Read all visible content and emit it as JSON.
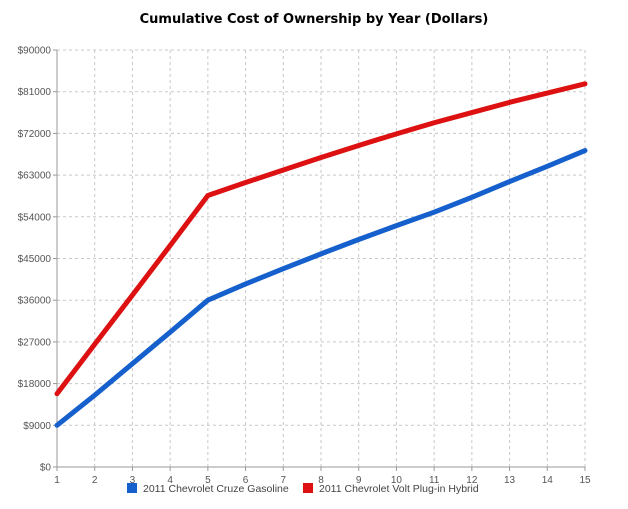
{
  "chart_data": {
    "type": "line",
    "title": "Cumulative Cost of Ownership by Year (Dollars)",
    "xlabel": "",
    "ylabel": "",
    "x": [
      1,
      2,
      3,
      4,
      5,
      6,
      7,
      8,
      9,
      10,
      11,
      12,
      13,
      14,
      15
    ],
    "xlim": [
      1,
      15
    ],
    "ylim": [
      0,
      90000
    ],
    "x_ticks": [
      "1",
      "2",
      "3",
      "4",
      "5",
      "6",
      "7",
      "8",
      "9",
      "10",
      "11",
      "12",
      "13",
      "14",
      "15"
    ],
    "y_ticks": [
      0,
      9000,
      18000,
      27000,
      36000,
      45000,
      54000,
      63000,
      72000,
      81000,
      90000
    ],
    "y_tick_labels": [
      "$0",
      "$9000",
      "$18000",
      "$27000",
      "$36000",
      "$45000",
      "$54000",
      "$63000",
      "$72000",
      "$81000",
      "$90000"
    ],
    "grid": true,
    "legend_position": "bottom",
    "series": [
      {
        "name": "2011 Chevrolet Cruze Gasoline",
        "color": "#1560cc",
        "values": [
          9000,
          15500,
          22300,
          29100,
          36000,
          39500,
          42800,
          46000,
          49100,
          52100,
          55000,
          58200,
          61600,
          64900,
          68300
        ]
      },
      {
        "name": "2011 Chevrolet Volt Plug-in Hybrid",
        "color": "#dd1111",
        "values": [
          15800,
          26500,
          37100,
          47800,
          58600,
          61400,
          64100,
          66800,
          69400,
          71900,
          74300,
          76500,
          78700,
          80700,
          82700
        ]
      }
    ]
  }
}
